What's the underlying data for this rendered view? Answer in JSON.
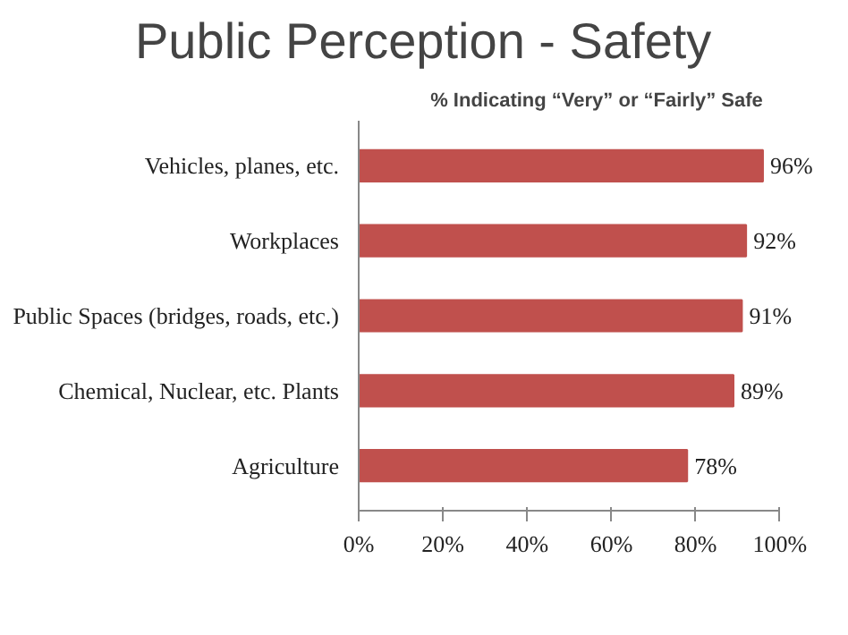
{
  "chart_data": {
    "type": "bar",
    "orientation": "horizontal",
    "title": "Public Perception - Safety",
    "subtitle": "% Indicating “Very” or “Fairly” Safe",
    "categories": [
      "Vehicles, planes, etc.",
      "Workplaces",
      "Public Spaces (bridges, roads, etc.)",
      "Chemical, Nuclear, etc. Plants",
      "Agriculture"
    ],
    "values": [
      96,
      92,
      91,
      89,
      78
    ],
    "color": "#c0504d",
    "value_labels": [
      "96%",
      "92%",
      "91%",
      "89%",
      "78%"
    ],
    "xlim": [
      0,
      100
    ],
    "xticks": [
      {
        "value": 0,
        "label": "0%"
      },
      {
        "value": 20,
        "label": "20%"
      },
      {
        "value": 40,
        "label": "40%"
      },
      {
        "value": 60,
        "label": "60%"
      },
      {
        "value": 80,
        "label": "80%"
      },
      {
        "value": 100,
        "label": "100%"
      }
    ],
    "grid": false
  }
}
